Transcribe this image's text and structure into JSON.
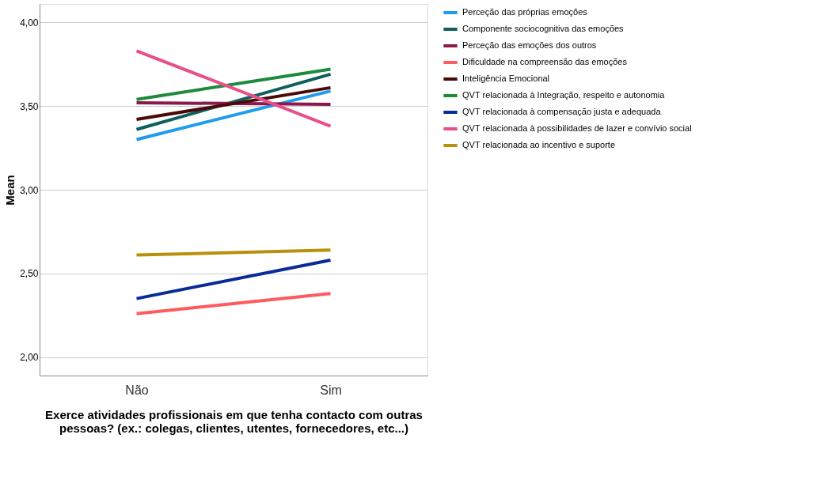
{
  "chart_data": {
    "type": "line",
    "xlabel": "Exerce atividades profissionais em que tenha contacto com outras pessoas? (ex.: colegas, clientes, utentes, fornecedores, etc...)",
    "ylabel": "Mean",
    "categories": [
      "Não",
      "Sim"
    ],
    "series": [
      {
        "name": "Perceção das próprias emoções",
        "color": "#1f9bef",
        "values": [
          3.3,
          3.59
        ]
      },
      {
        "name": "Componente sociocognitiva das emoções",
        "color": "#0f5f5c",
        "values": [
          3.36,
          3.69
        ]
      },
      {
        "name": "Perceção das emoções dos outros",
        "color": "#8b1a4a",
        "values": [
          3.52,
          3.51
        ]
      },
      {
        "name": "Dificuldade na compreensão das emoções",
        "color": "#ff5a5f",
        "values": [
          2.26,
          2.38
        ]
      },
      {
        "name": "Inteligência Emocional",
        "color": "#4a0a0a",
        "values": [
          3.42,
          3.61
        ]
      },
      {
        "name": "QVT relacionada à Integração, respeito e autonomia",
        "color": "#1e8a3c",
        "values": [
          3.54,
          3.72
        ]
      },
      {
        "name": "QVT relacionada à compensação justa e adequada",
        "color": "#0a2a9a",
        "values": [
          2.35,
          2.58
        ]
      },
      {
        "name": "QVT relacionada à possibilidades de lazer e convívio social",
        "color": "#e8508a",
        "values": [
          3.83,
          3.38
        ]
      },
      {
        "name": "QVT relacionada ao incentivo e suporte",
        "color": "#b8900a",
        "values": [
          2.61,
          2.64
        ]
      }
    ],
    "ylim": [
      1.89,
      4.11
    ],
    "yticks": [
      {
        "value": 2,
        "label": "2,00"
      },
      {
        "value": 2.5,
        "label": "2,50"
      },
      {
        "value": 3,
        "label": "3,00"
      },
      {
        "value": 3.5,
        "label": "3,50"
      },
      {
        "value": 4,
        "label": "4,00"
      }
    ],
    "grid": "y",
    "legend": "right",
    "marker": "none",
    "line_style": "solid"
  }
}
